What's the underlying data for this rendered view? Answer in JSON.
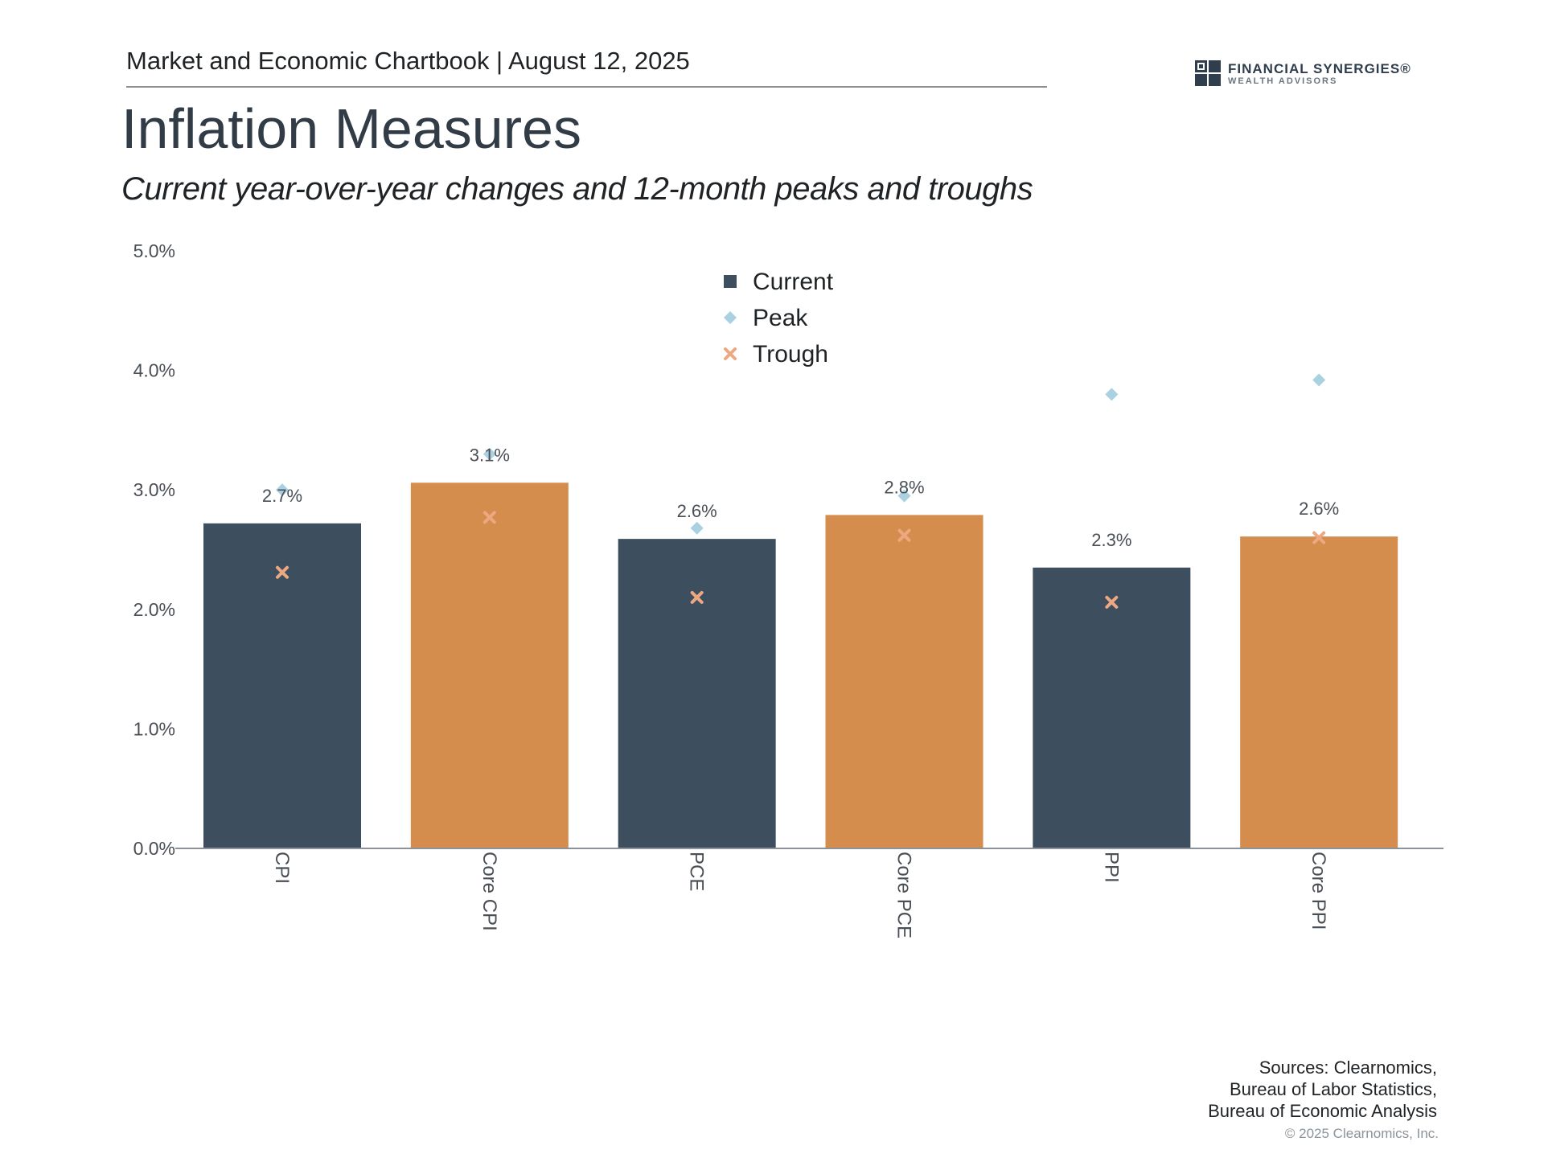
{
  "header": {
    "publication": "Market and Economic Chartbook | August 12, 2025"
  },
  "logo": {
    "name": "FINANCIAL SYNERGIES®",
    "sub": "WEALTH ADVISORS"
  },
  "page": {
    "title": "Inflation Measures",
    "subtitle": "Current year-over-year changes and 12-month peaks and troughs"
  },
  "chart_data": {
    "type": "bar",
    "title": "Inflation Measures",
    "subtitle": "Current year-over-year changes and 12-month peaks and troughs",
    "xlabel": "",
    "ylabel": "",
    "ylim": [
      0,
      5
    ],
    "yticks": [
      "0.0%",
      "1.0%",
      "2.0%",
      "3.0%",
      "4.0%",
      "5.0%"
    ],
    "yticks_values": [
      0,
      1,
      2,
      3,
      4,
      5
    ],
    "grid": false,
    "legend_position": "top-center",
    "categories": [
      "CPI",
      "Core CPI",
      "PCE",
      "Core PCE",
      "PPI",
      "Core PPI"
    ],
    "series": [
      {
        "name": "Current",
        "marker": "bar",
        "values": [
          2.72,
          3.06,
          2.59,
          2.79,
          2.35,
          2.61
        ],
        "labels": [
          "2.7%",
          "3.1%",
          "2.6%",
          "2.8%",
          "2.3%",
          "2.6%"
        ]
      },
      {
        "name": "Peak",
        "marker": "diamond",
        "values": [
          3.0,
          3.3,
          2.68,
          2.95,
          3.8,
          3.92
        ]
      },
      {
        "name": "Trough",
        "marker": "x",
        "values": [
          2.31,
          2.77,
          2.1,
          2.62,
          2.06,
          2.6
        ]
      }
    ]
  },
  "colors": {
    "bar_dark": "#3d4f5e",
    "bar_orange": "#d48d4c",
    "peak": "#a9d1e1",
    "trough": "#eda882",
    "axis": "#8c9298",
    "tick_text": "#4a4f55"
  },
  "footer": {
    "sources": [
      "Sources: Clearnomics,",
      "Bureau of Labor Statistics,",
      "Bureau of Economic Analysis"
    ],
    "copyright": "© 2025 Clearnomics, Inc."
  }
}
